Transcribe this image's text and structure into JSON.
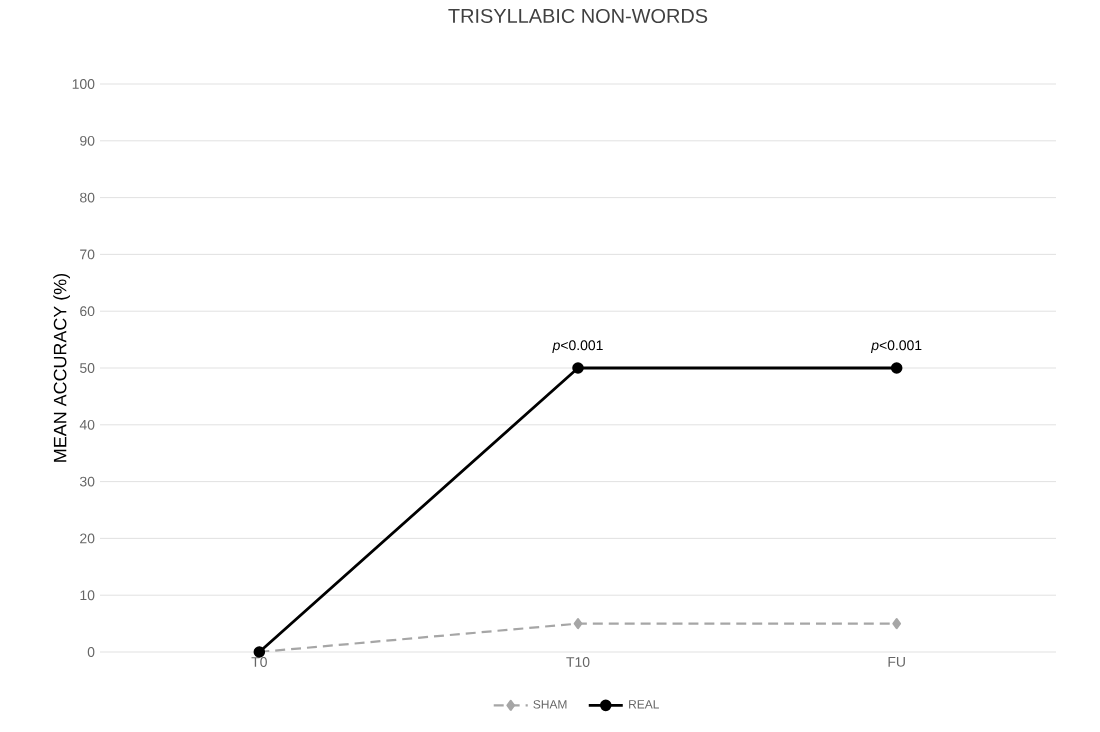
{
  "chart_data": {
    "type": "line",
    "title": "TRISYLLABIC NON-WORDS",
    "ylabel": "MEAN ACCURACY (%)",
    "categories": [
      "T0",
      "T10",
      "FU"
    ],
    "series": [
      {
        "name": "SHAM",
        "color": "#a6a6a6",
        "values": [
          0,
          5,
          5
        ],
        "marker": "diamond",
        "line_style": "dashed"
      },
      {
        "name": "REAL",
        "color": "#000000",
        "values": [
          0,
          50,
          50
        ],
        "marker": "circle",
        "line_style": "solid"
      }
    ],
    "ylim": [
      0,
      100
    ],
    "yticks": [
      0,
      10,
      20,
      30,
      40,
      50,
      60,
      70,
      80,
      90,
      100
    ],
    "grid": "y",
    "legend": "bottom",
    "annotations": [
      {
        "text": "*p*<0.001",
        "x": "T10",
        "y": 50
      },
      {
        "text": "*p*<0.001",
        "x": "FU",
        "y": 50
      }
    ]
  }
}
